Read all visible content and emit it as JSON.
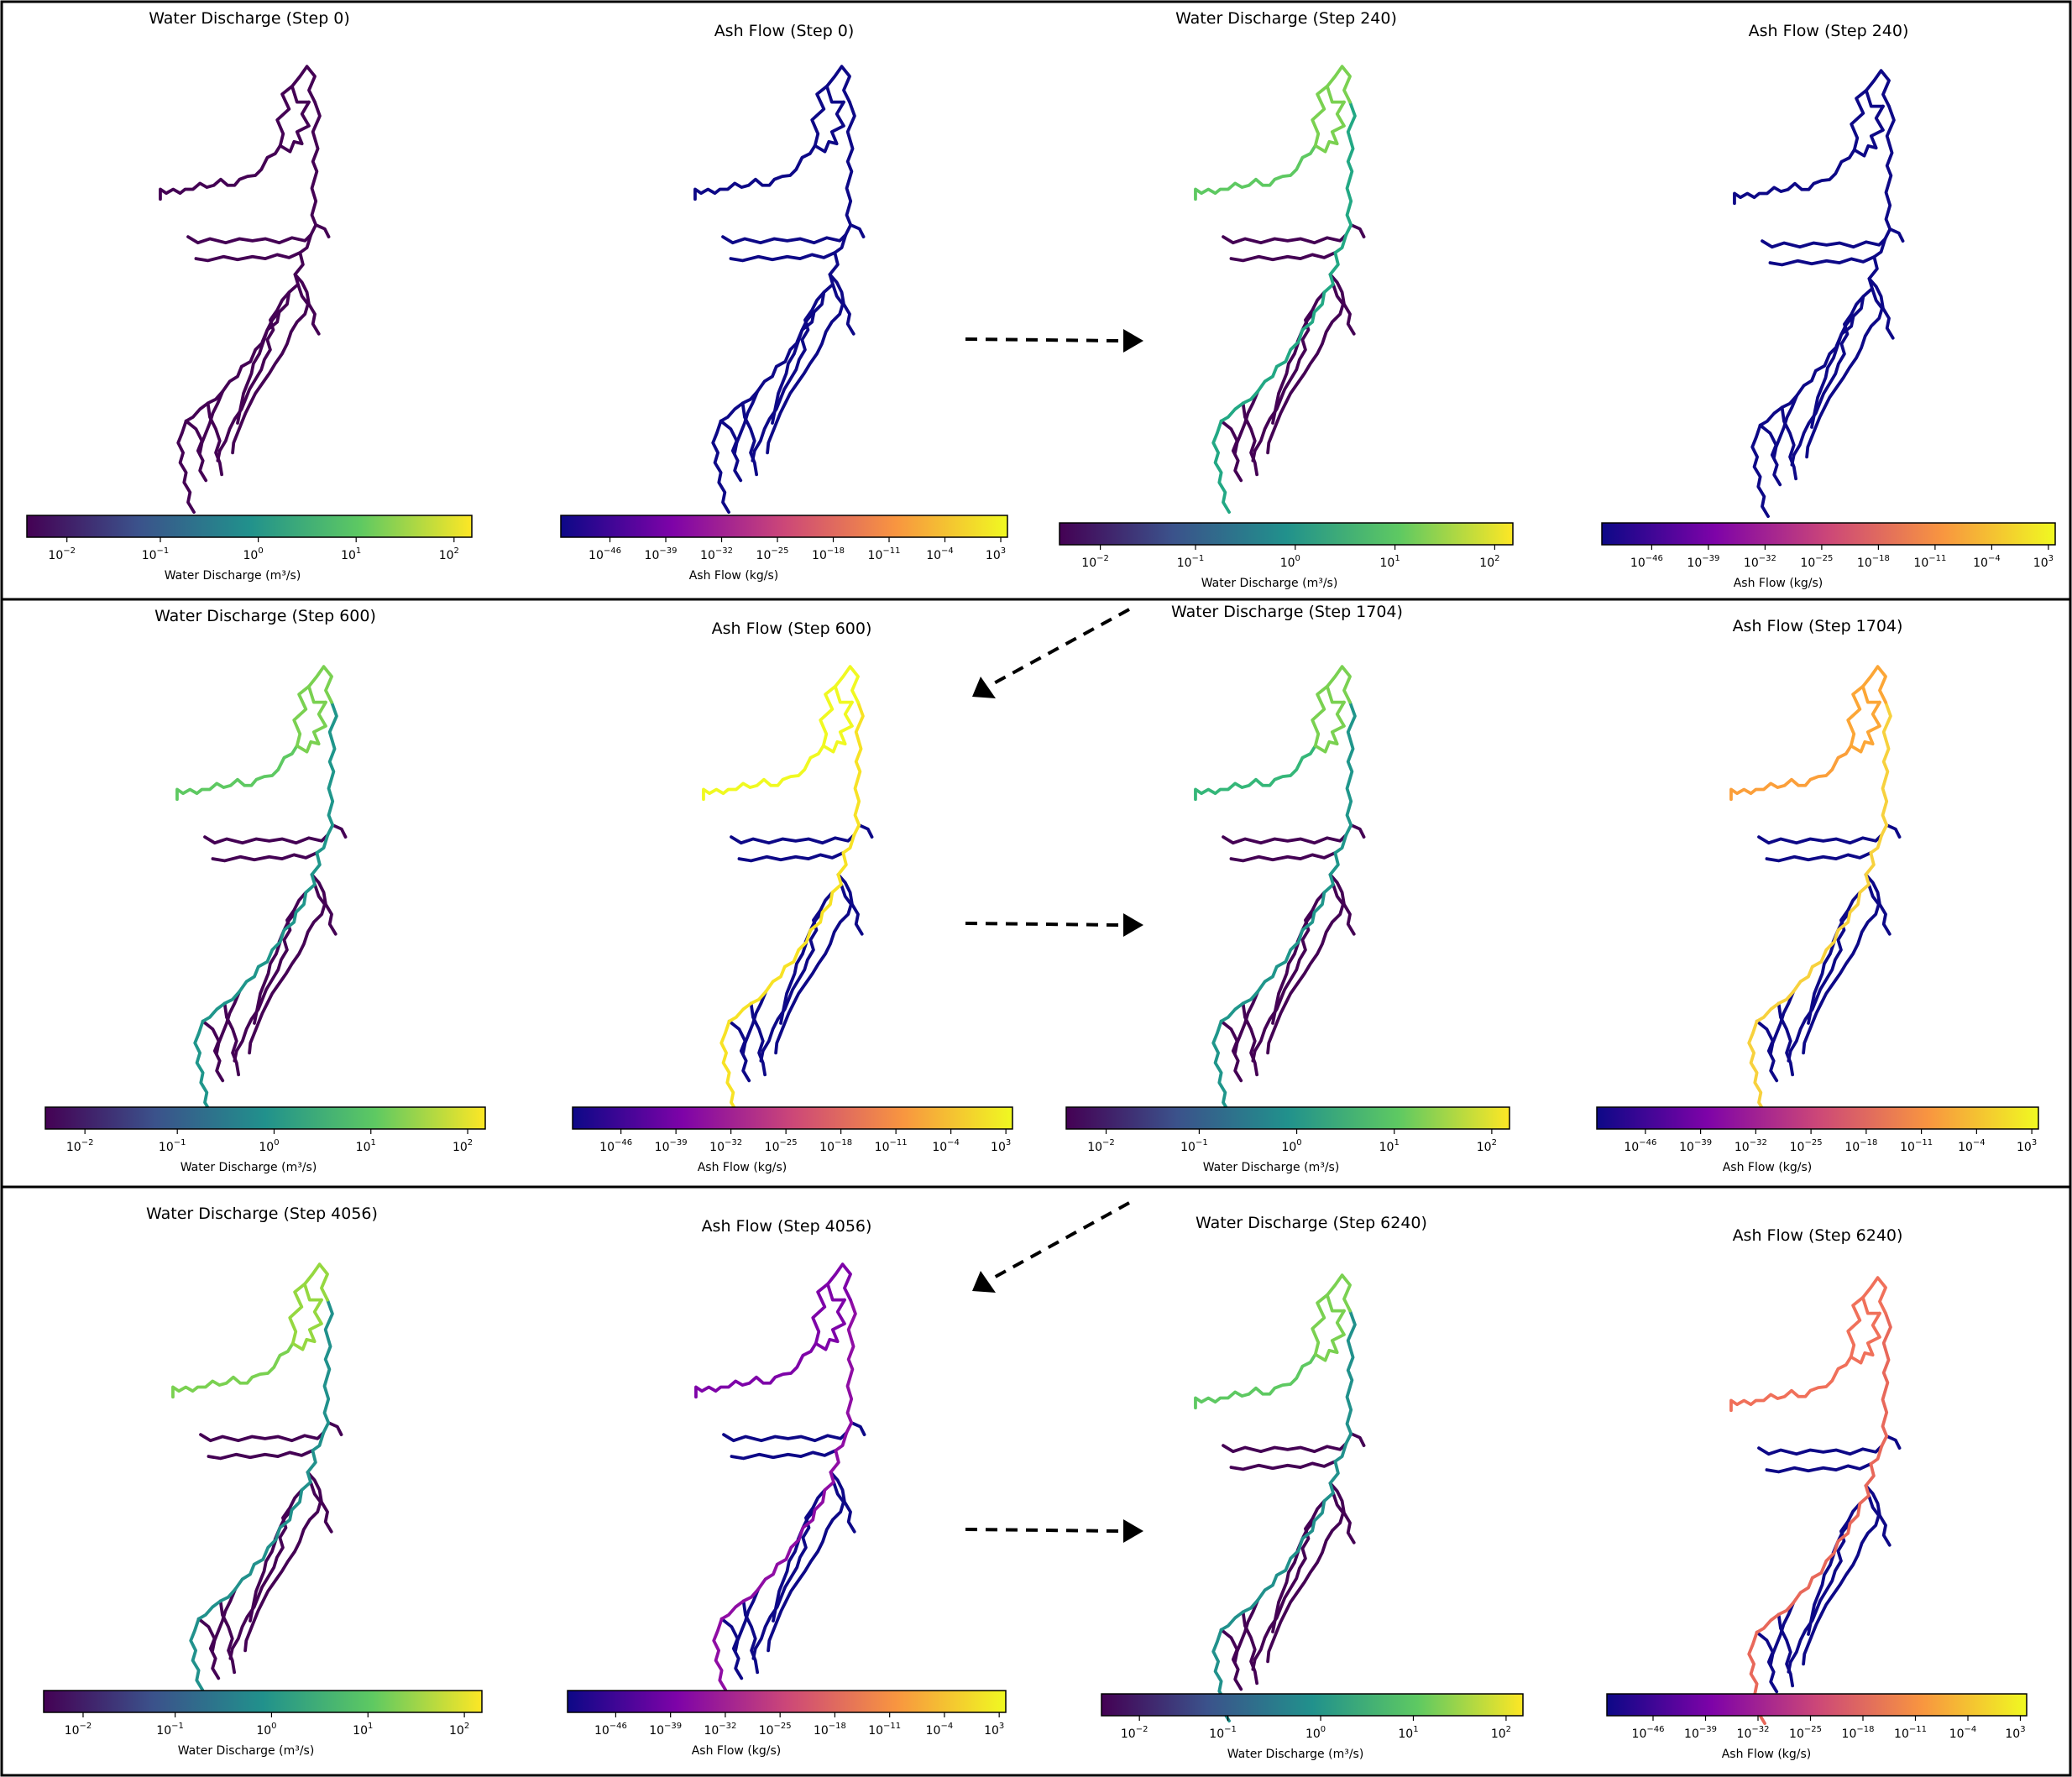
{
  "panels": [
    {
      "title": "Water Discharge (Step 0)",
      "kind": "water",
      "colors": {
        "up": "#440154",
        "main": "#440154",
        "left": "#440154",
        "trib": "#440154",
        "side": "#440154"
      }
    },
    {
      "title": "Ash Flow (Step 0)",
      "kind": "ash",
      "colors": {
        "up": "#0d0887",
        "main": "#0d0887",
        "left": "#0d0887",
        "trib": "#0d0887",
        "side": "#0d0887"
      }
    },
    {
      "title": "Water Discharge (Step 240)",
      "kind": "water",
      "colors": {
        "up": "#7ad151",
        "main": "#22a884",
        "left": "#5ec962",
        "trib": "#440154",
        "side": "#440154"
      }
    },
    {
      "title": "Ash Flow (Step 240)",
      "kind": "ash",
      "colors": {
        "up": "#0d0887",
        "main": "#0d0887",
        "left": "#0d0887",
        "trib": "#0d0887",
        "side": "#0d0887"
      }
    },
    {
      "title": "Water Discharge (Step 600)",
      "kind": "water",
      "colors": {
        "up": "#7ad151",
        "main": "#1f968b",
        "left": "#5ec962",
        "trib": "#440154",
        "side": "#440154"
      }
    },
    {
      "title": "Ash Flow (Step 600)",
      "kind": "ash",
      "colors": {
        "up": "#f0f921",
        "main": "#f7e225",
        "left": "#f0f921",
        "trib": "#0d0887",
        "side": "#0d0887"
      }
    },
    {
      "title": "Water Discharge (Step 1704)",
      "kind": "water",
      "colors": {
        "up": "#7ad151",
        "main": "#1f968b",
        "left": "#35b779",
        "trib": "#440154",
        "side": "#440154"
      }
    },
    {
      "title": "Ash Flow (Step 1704)",
      "kind": "ash",
      "colors": {
        "up": "#fca636",
        "main": "#f7d13d",
        "left": "#fb9f3a",
        "trib": "#0d0887",
        "side": "#0d0887"
      }
    },
    {
      "title": "Water Discharge (Step 4056)",
      "kind": "water",
      "colors": {
        "up": "#95d840",
        "main": "#21918c",
        "left": "#7ad151",
        "trib": "#440154",
        "side": "#440154"
      }
    },
    {
      "title": "Ash Flow (Step 4056)",
      "kind": "ash",
      "colors": {
        "up": "#7e03a8",
        "main": "#8f0da4",
        "left": "#7e03a8",
        "trib": "#0d0887",
        "side": "#0d0887"
      }
    },
    {
      "title": "Water Discharge (Step 6240)",
      "kind": "water",
      "colors": {
        "up": "#7ad151",
        "main": "#21918c",
        "left": "#5ec962",
        "trib": "#440154",
        "side": "#440154"
      }
    },
    {
      "title": "Ash Flow (Step 6240)",
      "kind": "ash",
      "colors": {
        "up": "#f0705a",
        "main": "#e8685a",
        "left": "#f0705a",
        "trib": "#0d0887",
        "side": "#0d0887"
      }
    }
  ],
  "colorbars": {
    "water": {
      "label": "Water Discharge (m³/s)",
      "ticks": [
        [
          "10",
          "−2"
        ],
        [
          "10",
          "−1"
        ],
        [
          "10",
          "0"
        ],
        [
          "10",
          "1"
        ],
        [
          "10",
          "2"
        ]
      ],
      "stops": [
        "#440154",
        "#3b528b",
        "#21918c",
        "#5ec962",
        "#fde725"
      ]
    },
    "ash": {
      "label": "Ash Flow (kg/s)",
      "ticks": [
        [
          "10",
          "−46"
        ],
        [
          "10",
          "−39"
        ],
        [
          "10",
          "−32"
        ],
        [
          "10",
          "−25"
        ],
        [
          "10",
          "−18"
        ],
        [
          "10",
          "−11"
        ],
        [
          "10",
          "−4"
        ],
        [
          "10",
          "3"
        ]
      ],
      "stops": [
        "#0d0887",
        "#7e03a8",
        "#cc4778",
        "#f89540",
        "#f0f921"
      ]
    }
  }
}
